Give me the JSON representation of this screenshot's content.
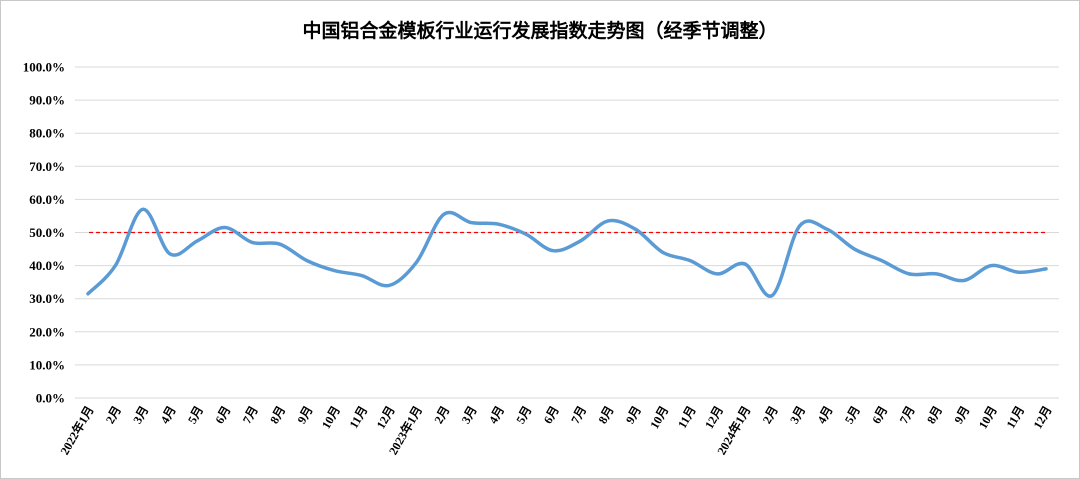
{
  "chart_data": {
    "type": "line",
    "title": "中国铝合金模板行业运行发展指数走势图（经季节调整）",
    "xlabel": "",
    "ylabel": "",
    "categories": [
      "2022年1月",
      "2月",
      "3月",
      "4月",
      "5月",
      "6月",
      "7月",
      "8月",
      "9月",
      "10月",
      "11月",
      "12月",
      "2023年1月",
      "2月",
      "3月",
      "4月",
      "5月",
      "6月",
      "7月",
      "8月",
      "9月",
      "10月",
      "11月",
      "12月",
      "2024年1月",
      "2月",
      "3月",
      "4月",
      "5月",
      "6月",
      "7月",
      "8月",
      "9月",
      "10月",
      "11月",
      "12月"
    ],
    "series": [
      {
        "values": [
          31.5,
          40.0,
          57.0,
          43.5,
          47.5,
          51.5,
          47.0,
          46.5,
          41.5,
          38.5,
          37.0,
          34.0,
          41.0,
          55.5,
          53.0,
          52.5,
          49.5,
          44.5,
          47.5,
          53.5,
          51.0,
          44.0,
          41.5,
          37.5,
          40.5,
          31.0,
          52.0,
          51.0,
          45.0,
          41.5,
          37.5,
          37.5,
          35.5,
          40.0,
          38.0,
          39.0
        ],
        "color": "#5b9bd5"
      }
    ],
    "reference_line": {
      "value": 50.0,
      "color": "#ff0000",
      "style": "dashed"
    },
    "ylim": [
      0,
      100
    ],
    "yticks": [
      "0.0%",
      "10.0%",
      "20.0%",
      "30.0%",
      "40.0%",
      "50.0%",
      "60.0%",
      "70.0%",
      "80.0%",
      "90.0%",
      "100.0%"
    ],
    "grid": true,
    "legend": "none"
  }
}
